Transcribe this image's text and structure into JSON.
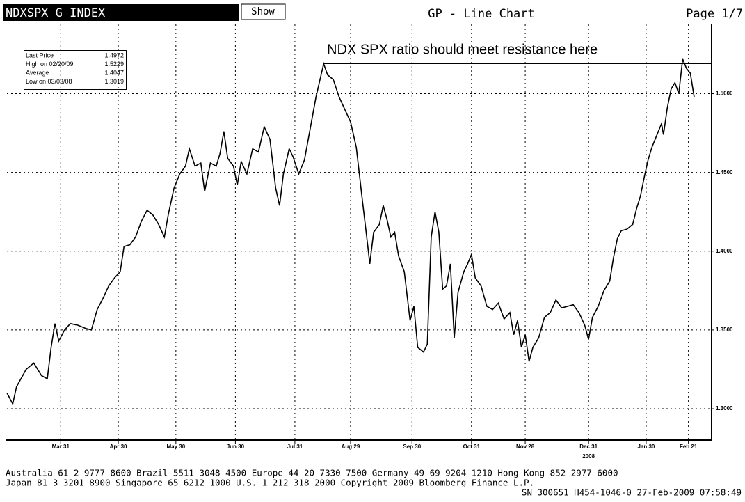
{
  "header": {
    "ticker": "NDXSPX G INDEX",
    "button": "Show",
    "view": "GP - Line Chart",
    "page": "Page 1/7"
  },
  "chart_data": {
    "type": "line",
    "annotation": "NDX SPX ratio should meet resistance here",
    "resistance": 1.519,
    "stats": [
      {
        "label": "Last Price",
        "value": 1.4972
      },
      {
        "label": "High on 02/20/09",
        "value": 1.5229
      },
      {
        "label": "Average",
        "value": 1.4047
      },
      {
        "label": "Low on 03/03/08",
        "value": 1.3019
      }
    ],
    "color": "#000000",
    "x": [
      0,
      3,
      5,
      10,
      14,
      18,
      21,
      23,
      25,
      27,
      30,
      33,
      37,
      41,
      44,
      47,
      50,
      53,
      56,
      59,
      61,
      64,
      67,
      70,
      73,
      76,
      79,
      82,
      84,
      87,
      90,
      93,
      95,
      98,
      101,
      103,
      106,
      109,
      111,
      113,
      115,
      118,
      120,
      122,
      125,
      128,
      131,
      134,
      137,
      140,
      142,
      144,
      147,
      149,
      152,
      155,
      158,
      161,
      165,
      167,
      170,
      173,
      176,
      179,
      182,
      185,
      188,
      189,
      191,
      194,
      196,
      198,
      200,
      202,
      204,
      207,
      210,
      212,
      214,
      217,
      219,
      221,
      223,
      225,
      227,
      229,
      231,
      233,
      235,
      238,
      240,
      242,
      244,
      247,
      250,
      253,
      256,
      259,
      262,
      264,
      266,
      268,
      270,
      272,
      274,
      277,
      280,
      283,
      286,
      289,
      292,
      295,
      298,
      301,
      303,
      305,
      308,
      311,
      314,
      316,
      318,
      320,
      323,
      326,
      328,
      330,
      332,
      334,
      336,
      339,
      341,
      342,
      344,
      346,
      348,
      350,
      352,
      354,
      356,
      358
    ],
    "values": [
      1.31,
      1.303,
      1.314,
      1.325,
      1.329,
      1.321,
      1.319,
      1.339,
      1.354,
      1.343,
      1.35,
      1.354,
      1.353,
      1.351,
      1.35,
      1.363,
      1.37,
      1.378,
      1.383,
      1.387,
      1.403,
      1.404,
      1.409,
      1.419,
      1.426,
      1.423,
      1.417,
      1.409,
      1.423,
      1.44,
      1.449,
      1.454,
      1.465,
      1.454,
      1.456,
      1.438,
      1.456,
      1.454,
      1.462,
      1.476,
      1.459,
      1.454,
      1.442,
      1.457,
      1.449,
      1.465,
      1.463,
      1.479,
      1.471,
      1.44,
      1.429,
      1.449,
      1.465,
      1.46,
      1.449,
      1.458,
      1.478,
      1.498,
      1.519,
      1.512,
      1.509,
      1.498,
      1.49,
      1.482,
      1.466,
      1.434,
      1.403,
      1.392,
      1.412,
      1.417,
      1.429,
      1.42,
      1.409,
      1.412,
      1.397,
      1.387,
      1.356,
      1.365,
      1.339,
      1.336,
      1.341,
      1.409,
      1.425,
      1.412,
      1.376,
      1.378,
      1.392,
      1.345,
      1.374,
      1.387,
      1.392,
      1.398,
      1.383,
      1.378,
      1.365,
      1.363,
      1.367,
      1.357,
      1.361,
      1.347,
      1.356,
      1.339,
      1.347,
      1.33,
      1.339,
      1.345,
      1.358,
      1.361,
      1.369,
      1.364,
      1.365,
      1.366,
      1.361,
      1.353,
      1.344,
      1.358,
      1.365,
      1.375,
      1.381,
      1.396,
      1.408,
      1.413,
      1.414,
      1.417,
      1.427,
      1.435,
      1.447,
      1.458,
      1.466,
      1.475,
      1.481,
      1.474,
      1.491,
      1.503,
      1.507,
      1.5,
      1.522,
      1.516,
      1.513,
      1.498
    ],
    "xlim": [
      0,
      366
    ],
    "xticks": [
      {
        "value": 28,
        "label": "Mar 31"
      },
      {
        "value": 58,
        "label": "Apr 30"
      },
      {
        "value": 88,
        "label": "May 30"
      },
      {
        "value": 119,
        "label": "Jun 30"
      },
      {
        "value": 150,
        "label": "Jul 31"
      },
      {
        "value": 179,
        "label": "Aug 29"
      },
      {
        "value": 211,
        "label": "Sep 30"
      },
      {
        "value": 242,
        "label": "Oct 31"
      },
      {
        "value": 270,
        "label": "Nov 28"
      },
      {
        "value": 303,
        "label": "Dec 31"
      },
      {
        "value": 333,
        "label": "Jan 30"
      },
      {
        "value": 355,
        "label": "Feb 21"
      }
    ],
    "year_label": "2008",
    "ylim": [
      1.281,
      1.544
    ],
    "yticks": [
      {
        "value": 1.3,
        "label": "1.3000"
      },
      {
        "value": 1.35,
        "label": "1.3500"
      },
      {
        "value": 1.4,
        "label": "1.4000"
      },
      {
        "value": 1.45,
        "label": "1.4500"
      },
      {
        "value": 1.5,
        "label": "1.5000"
      }
    ],
    "grid": true
  },
  "footer": [
    "Australia 61 2 9777 8600 Brazil 5511 3048 4500 Europe 44 20 7330 7500 Germany 49 69 9204 1210 Hong Kong 852 2977 6000",
    "Japan 81 3 3201 8900         Singapore 65 6212 1000       U.S. 1 212 318 2000          Copyright 2009 Bloomberg Finance L.P.",
    "SN 300651 H454-1046-0 27-Feb-2009 07:58:49"
  ]
}
